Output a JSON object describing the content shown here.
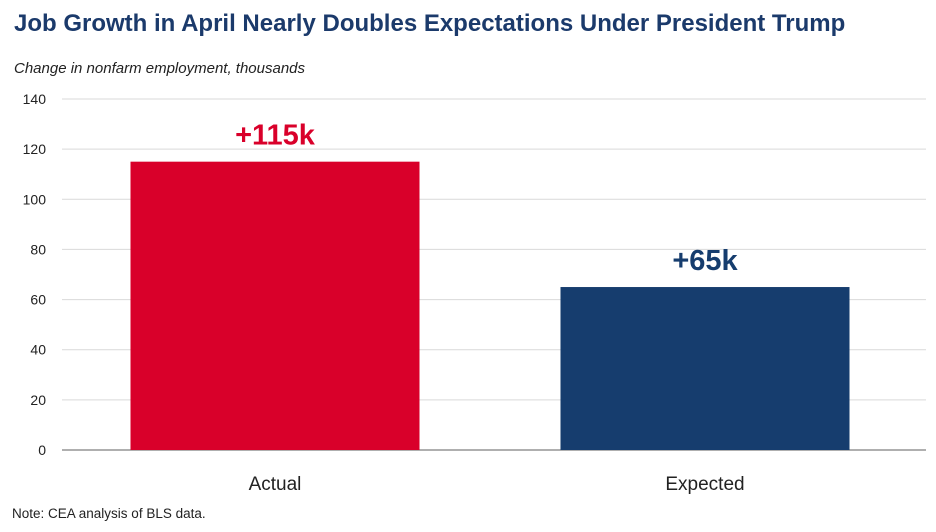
{
  "title": "Job Growth in April Nearly Doubles Expectations Under President Trump",
  "subtitle": "Change in nonfarm employment, thousands",
  "note": "Note: CEA analysis of BLS data.",
  "colors": {
    "actual": "#d9002a",
    "expected": "#163d6e",
    "grid": "#d9d9d9",
    "axis": "#7f7f7f",
    "text": "#222222"
  },
  "chart_data": {
    "type": "bar",
    "categories": [
      "Actual",
      "Expected"
    ],
    "values": [
      115,
      65
    ],
    "data_labels": [
      "+115k",
      "+65k"
    ],
    "bar_colors": [
      "#d9002a",
      "#163d6e"
    ],
    "ylim": [
      0,
      140
    ],
    "yticks": [
      0,
      20,
      40,
      60,
      80,
      100,
      120,
      140
    ],
    "grid": true,
    "legend": "none"
  }
}
